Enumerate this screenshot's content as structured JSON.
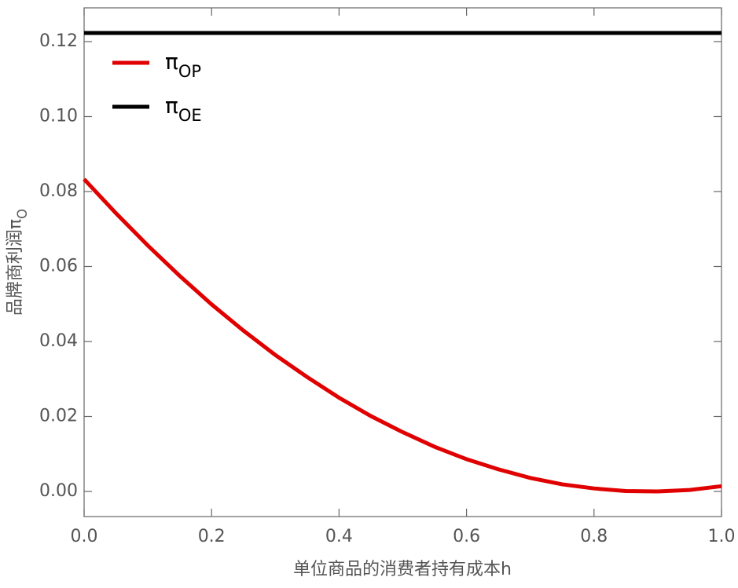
{
  "chart_data": {
    "type": "line",
    "xlabel": "单位商品的消费者持有成本h",
    "ylabel": "品牌商利润πO",
    "x": [
      0,
      0.05,
      0.1,
      0.15,
      0.2,
      0.25,
      0.3,
      0.35,
      0.4,
      0.45,
      0.5,
      0.55,
      0.6,
      0.65,
      0.7,
      0.75,
      0.8,
      0.85,
      0.9,
      0.95,
      1.0
    ],
    "series": [
      {
        "name": "πOP",
        "color": "#e00000",
        "values": [
          0.0833,
          0.0742,
          0.0656,
          0.0575,
          0.0499,
          0.0429,
          0.0364,
          0.0305,
          0.025,
          0.0201,
          0.0158,
          0.0119,
          0.0086,
          0.0059,
          0.0036,
          0.0019,
          0.0008,
          0.0001,
          0.0,
          0.0004,
          0.0014
        ]
      },
      {
        "name": "πOE",
        "color": "#000000",
        "values": [
          0.1223,
          0.1223,
          0.1223,
          0.1223,
          0.1223,
          0.1223,
          0.1223,
          0.1223,
          0.1223,
          0.1223,
          0.1223,
          0.1223,
          0.1223,
          0.1223,
          0.1223,
          0.1223,
          0.1223,
          0.1223,
          0.1223,
          0.1223,
          0.1223
        ]
      }
    ],
    "xlim": [
      0,
      1.0
    ],
    "ylim": [
      -0.0067,
      0.129
    ],
    "xticks": [
      {
        "value": 0,
        "label": "0.0"
      },
      0.2,
      0.4,
      0.6,
      0.8,
      {
        "value": 1.0,
        "label": "1.0"
      }
    ],
    "yticks": [
      {
        "value": 0,
        "label": "0.00"
      },
      0.02,
      0.04,
      0.06,
      0.08,
      {
        "value": 0.1,
        "label": "0.10"
      },
      0.12
    ],
    "legend": "top-left"
  }
}
